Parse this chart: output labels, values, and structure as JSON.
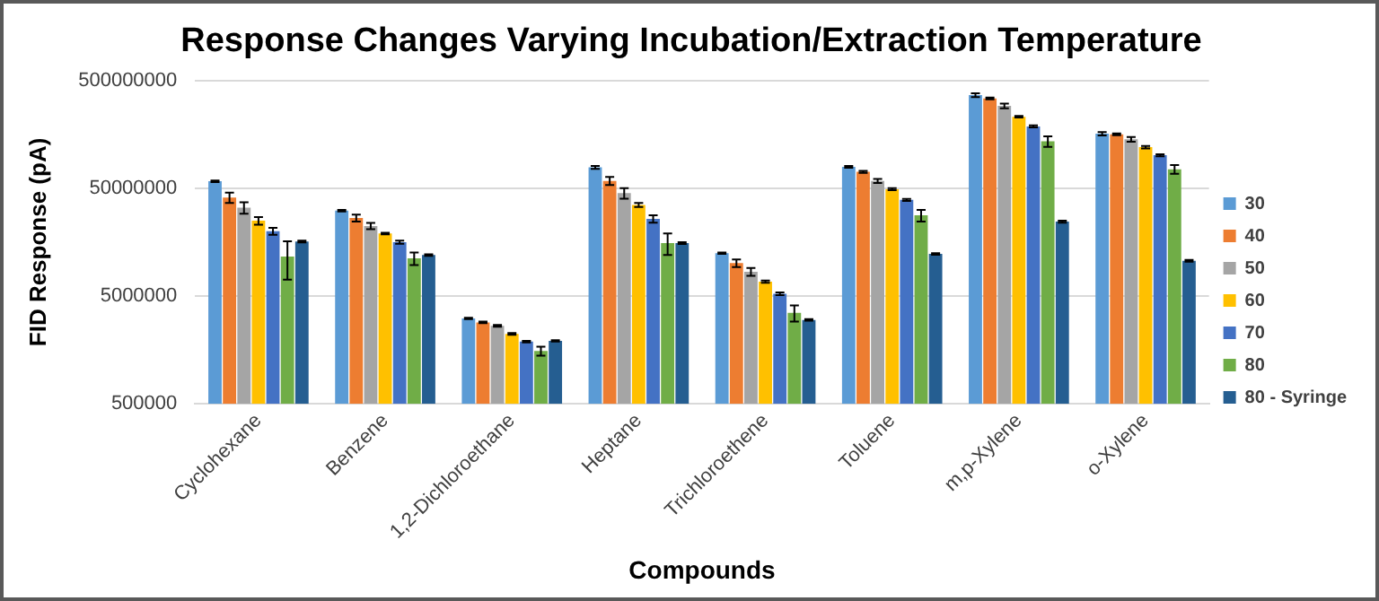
{
  "chart_data": {
    "type": "bar",
    "title": "Response Changes Varying Incubation/Extraction Temperature",
    "xlabel": "Compounds",
    "ylabel": "FID Response (pA)",
    "categories": [
      "Cyclohexane",
      "Benzene",
      "1,2-Dichloroethane",
      "Heptane",
      "Trichloroethene",
      "Toluene",
      "m,p-Xylene",
      "o-Xylene"
    ],
    "series": [
      {
        "name": "30",
        "color": "#5b9bd5",
        "values": [
          58000000,
          31000000,
          3100000,
          78000000,
          12500000,
          79000000,
          365000000,
          160000000
        ],
        "errors": [
          1000000,
          500000,
          50000,
          2500000,
          200000,
          1500000,
          15000000,
          6000000
        ]
      },
      {
        "name": "40",
        "color": "#ed7d31",
        "values": [
          41000000,
          26500000,
          2850000,
          58500000,
          10100000,
          71000000,
          340000000,
          158000000
        ],
        "errors": [
          4500000,
          2000000,
          50000,
          5000000,
          800000,
          1500000,
          6000000,
          3000000
        ]
      },
      {
        "name": "50",
        "color": "#a5a5a5",
        "values": [
          33000000,
          22300000,
          2650000,
          45000000,
          8400000,
          58500000,
          290000000,
          142000000
        ],
        "errors": [
          4000000,
          1500000,
          50000,
          5000000,
          700000,
          2500000,
          15000000,
          7000000
        ]
      },
      {
        "name": "60",
        "color": "#ffc000",
        "values": [
          25000000,
          19000000,
          2230000,
          35000000,
          6800000,
          49000000,
          230000000,
          120000000
        ],
        "errors": [
          2000000,
          300000,
          40000,
          1500000,
          150000,
          1000000,
          4000000,
          3000000
        ]
      },
      {
        "name": "70",
        "color": "#4472c4",
        "values": [
          20000000,
          15800000,
          1890000,
          26000000,
          5250000,
          39000000,
          187000000,
          101000000
        ],
        "errors": [
          1500000,
          500000,
          30000,
          2000000,
          150000,
          800000,
          4000000,
          2000000
        ]
      },
      {
        "name": "80",
        "color": "#70ad47",
        "values": [
          11600000,
          11200000,
          1550000,
          15500000,
          3500000,
          28000000,
          136000000,
          75000000
        ],
        "errors": [
          4500000,
          1500000,
          150000,
          3500000,
          600000,
          3500000,
          15000000,
          7000000
        ]
      },
      {
        "name": "80 - Syringe",
        "color": "#255e91",
        "values": [
          16000000,
          12000000,
          1920000,
          15500000,
          3000000,
          12300000,
          24500000,
          10600000
        ],
        "errors": [
          300000,
          200000,
          30000,
          300000,
          50000,
          200000,
          500000,
          200000
        ]
      }
    ],
    "log": "y",
    "ylim": [
      500000,
      500000000
    ],
    "yticks": [
      500000,
      5000000,
      50000000,
      500000000
    ],
    "grid": "y",
    "legend": "right"
  }
}
